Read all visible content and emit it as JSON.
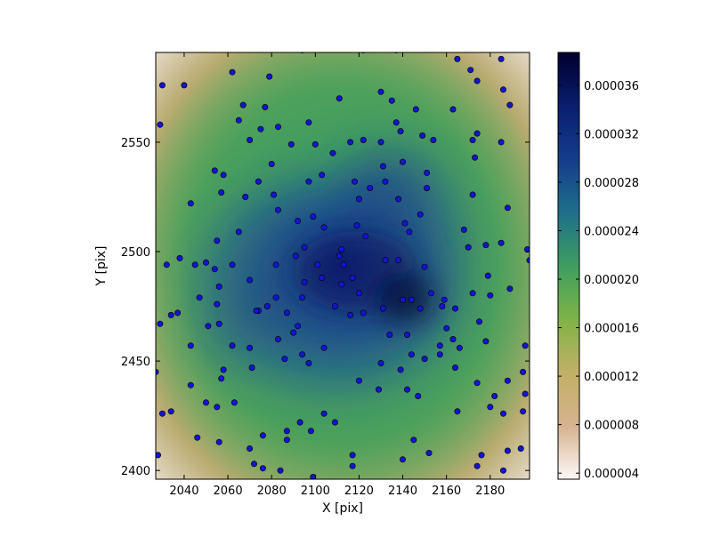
{
  "chart_data": {
    "type": "scatter",
    "xlabel": "X [pix]",
    "ylabel": "Y [pix]",
    "xlim": [
      2027,
      2198
    ],
    "ylim": [
      2396,
      2591
    ],
    "xticks": [
      "2040",
      "2060",
      "2080",
      "2100",
      "2120",
      "2140",
      "2160",
      "2180"
    ],
    "yticks": [
      "2400",
      "2450",
      "2500",
      "2550"
    ],
    "xtick_values": [
      2040,
      2060,
      2080,
      2100,
      2120,
      2140,
      2160,
      2180
    ],
    "ytick_values": [
      2400,
      2450,
      2500,
      2550
    ],
    "colorbar": {
      "ticks": [
        "0.000004",
        "0.000008",
        "0.000012",
        "0.000016",
        "0.000020",
        "0.000024",
        "0.000028",
        "0.000032",
        "0.000036"
      ],
      "tick_values": [
        4e-06,
        8e-06,
        1.2e-05,
        1.6e-05,
        2e-05,
        2.4e-05,
        2.8e-05,
        3.2e-05,
        3.6e-05
      ],
      "range": [
        3.5e-06,
        3.87e-05
      ],
      "colors": [
        "#fdf8f7",
        "#d6b28f",
        "#c2b066",
        "#7fb347",
        "#3d9e60",
        "#1e6f8a",
        "#153c8c",
        "#0a1d6e",
        "#00002e"
      ]
    },
    "background_map": "density",
    "point_color": "#1414d2",
    "points": [
      [
        2030,
        2576
      ],
      [
        2040,
        2576
      ],
      [
        2029,
        2558
      ],
      [
        2062,
        2582
      ],
      [
        2079,
        2580
      ],
      [
        2094,
        2592
      ],
      [
        2122,
        2592
      ],
      [
        2137,
        2592
      ],
      [
        2165,
        2588
      ],
      [
        2171,
        2583
      ],
      [
        2185,
        2588
      ],
      [
        2067,
        2567
      ],
      [
        2077,
        2566
      ],
      [
        2111,
        2570
      ],
      [
        2130,
        2573
      ],
      [
        2135,
        2569
      ],
      [
        2146,
        2565
      ],
      [
        2174,
        2578
      ],
      [
        2186,
        2574
      ],
      [
        2189,
        2567
      ],
      [
        2065,
        2560
      ],
      [
        2075,
        2556
      ],
      [
        2083,
        2557
      ],
      [
        2097,
        2559
      ],
      [
        2070,
        2551
      ],
      [
        2089,
        2549
      ],
      [
        2100,
        2549
      ],
      [
        2108,
        2545
      ],
      [
        2116,
        2550
      ],
      [
        2122,
        2551
      ],
      [
        2130,
        2550
      ],
      [
        2137,
        2559
      ],
      [
        2139,
        2555
      ],
      [
        2149,
        2553
      ],
      [
        2154,
        2551
      ],
      [
        2163,
        2565
      ],
      [
        2172,
        2551
      ],
      [
        2174,
        2554
      ],
      [
        2185,
        2550
      ],
      [
        2173,
        2543
      ],
      [
        2054,
        2537
      ],
      [
        2058,
        2535
      ],
      [
        2074,
        2532
      ],
      [
        2080,
        2540
      ],
      [
        2097,
        2532
      ],
      [
        2103,
        2535
      ],
      [
        2118,
        2532
      ],
      [
        2131,
        2539
      ],
      [
        2132,
        2532
      ],
      [
        2140,
        2541
      ],
      [
        2151,
        2536
      ],
      [
        2043,
        2522
      ],
      [
        2057,
        2527
      ],
      [
        2068,
        2525
      ],
      [
        2081,
        2526
      ],
      [
        2083,
        2519
      ],
      [
        2092,
        2514
      ],
      [
        2099,
        2516
      ],
      [
        2104,
        2511
      ],
      [
        2120,
        2524
      ],
      [
        2125,
        2529
      ],
      [
        2138,
        2524
      ],
      [
        2151,
        2529
      ],
      [
        2172,
        2526
      ],
      [
        2188,
        2520
      ],
      [
        2055,
        2505
      ],
      [
        2065,
        2509
      ],
      [
        2091,
        2498
      ],
      [
        2095,
        2502
      ],
      [
        2101,
        2494
      ],
      [
        2111,
        2498
      ],
      [
        2113,
        2494
      ],
      [
        2112,
        2501
      ],
      [
        2119,
        2512
      ],
      [
        2123,
        2507
      ],
      [
        2141,
        2513
      ],
      [
        2143,
        2509
      ],
      [
        2148,
        2517
      ],
      [
        2168,
        2510
      ],
      [
        2178,
        2503
      ],
      [
        2185,
        2504
      ],
      [
        2197,
        2501
      ],
      [
        2198,
        2496
      ],
      [
        2032,
        2494
      ],
      [
        2038,
        2497
      ],
      [
        2045,
        2494
      ],
      [
        2050,
        2495
      ],
      [
        2054,
        2492
      ],
      [
        2062,
        2494
      ],
      [
        2082,
        2494
      ],
      [
        2070,
        2487
      ],
      [
        2095,
        2486
      ],
      [
        2103,
        2488
      ],
      [
        2112,
        2485
      ],
      [
        2117,
        2488
      ],
      [
        2120,
        2481
      ],
      [
        2132,
        2496
      ],
      [
        2138,
        2496
      ],
      [
        2150,
        2493
      ],
      [
        2153,
        2481
      ],
      [
        2159,
        2478
      ],
      [
        2170,
        2502
      ],
      [
        2179,
        2489
      ],
      [
        2189,
        2483
      ],
      [
        2172,
        2481
      ],
      [
        2037,
        2472
      ],
      [
        2047,
        2479
      ],
      [
        2029,
        2467
      ],
      [
        2034,
        2471
      ],
      [
        2056,
        2484
      ],
      [
        2055,
        2476
      ],
      [
        2074,
        2473
      ],
      [
        2078,
        2475
      ],
      [
        2082,
        2479
      ],
      [
        2087,
        2472
      ],
      [
        2094,
        2479
      ],
      [
        2109,
        2475
      ],
      [
        2116,
        2471
      ],
      [
        2122,
        2472
      ],
      [
        2131,
        2474
      ],
      [
        2140,
        2478
      ],
      [
        2144,
        2478
      ],
      [
        2148,
        2474
      ],
      [
        2158,
        2475
      ],
      [
        2164,
        2474
      ],
      [
        2175,
        2468
      ],
      [
        2180,
        2480
      ],
      [
        2051,
        2466
      ],
      [
        2056,
        2467
      ],
      [
        2073,
        2473
      ],
      [
        2092,
        2466
      ],
      [
        2043,
        2457
      ],
      [
        2062,
        2457
      ],
      [
        2070,
        2456
      ],
      [
        2083,
        2460
      ],
      [
        2090,
        2463
      ],
      [
        2094,
        2453
      ],
      [
        2104,
        2456
      ],
      [
        2134,
        2462
      ],
      [
        2142,
        2462
      ],
      [
        2157,
        2457
      ],
      [
        2160,
        2465
      ],
      [
        2163,
        2460
      ],
      [
        2178,
        2459
      ],
      [
        2196,
        2457
      ],
      [
        2027,
        2445
      ],
      [
        2058,
        2446
      ],
      [
        2071,
        2447
      ],
      [
        2086,
        2451
      ],
      [
        2097,
        2449
      ],
      [
        2130,
        2449
      ],
      [
        2139,
        2446
      ],
      [
        2144,
        2453
      ],
      [
        2150,
        2451
      ],
      [
        2157,
        2453
      ],
      [
        2164,
        2447
      ],
      [
        2166,
        2456
      ],
      [
        2195,
        2445
      ],
      [
        2043,
        2439
      ],
      [
        2050,
        2431
      ],
      [
        2057,
        2442
      ],
      [
        2063,
        2431
      ],
      [
        2030,
        2426
      ],
      [
        2034,
        2427
      ],
      [
        2055,
        2429
      ],
      [
        2104,
        2426
      ],
      [
        2120,
        2441
      ],
      [
        2129,
        2437
      ],
      [
        2142,
        2437
      ],
      [
        2147,
        2434
      ],
      [
        2165,
        2427
      ],
      [
        2174,
        2440
      ],
      [
        2180,
        2429
      ],
      [
        2182,
        2434
      ],
      [
        2188,
        2441
      ],
      [
        2195,
        2427
      ],
      [
        2186,
        2426
      ],
      [
        2196,
        2435
      ],
      [
        2046,
        2415
      ],
      [
        2056,
        2413
      ],
      [
        2076,
        2416
      ],
      [
        2087,
        2418
      ],
      [
        2087,
        2414
      ],
      [
        2093,
        2422
      ],
      [
        2098,
        2418
      ],
      [
        2109,
        2422
      ],
      [
        2028,
        2407
      ],
      [
        2070,
        2410
      ],
      [
        2072,
        2403
      ],
      [
        2076,
        2401
      ],
      [
        2084,
        2400
      ],
      [
        2099,
        2397
      ],
      [
        2117,
        2407
      ],
      [
        2117,
        2402
      ],
      [
        2140,
        2405
      ],
      [
        2145,
        2414
      ],
      [
        2152,
        2408
      ],
      [
        2174,
        2402
      ],
      [
        2176,
        2407
      ],
      [
        2186,
        2400
      ],
      [
        2188,
        2409
      ],
      [
        2194,
        2410
      ]
    ]
  }
}
